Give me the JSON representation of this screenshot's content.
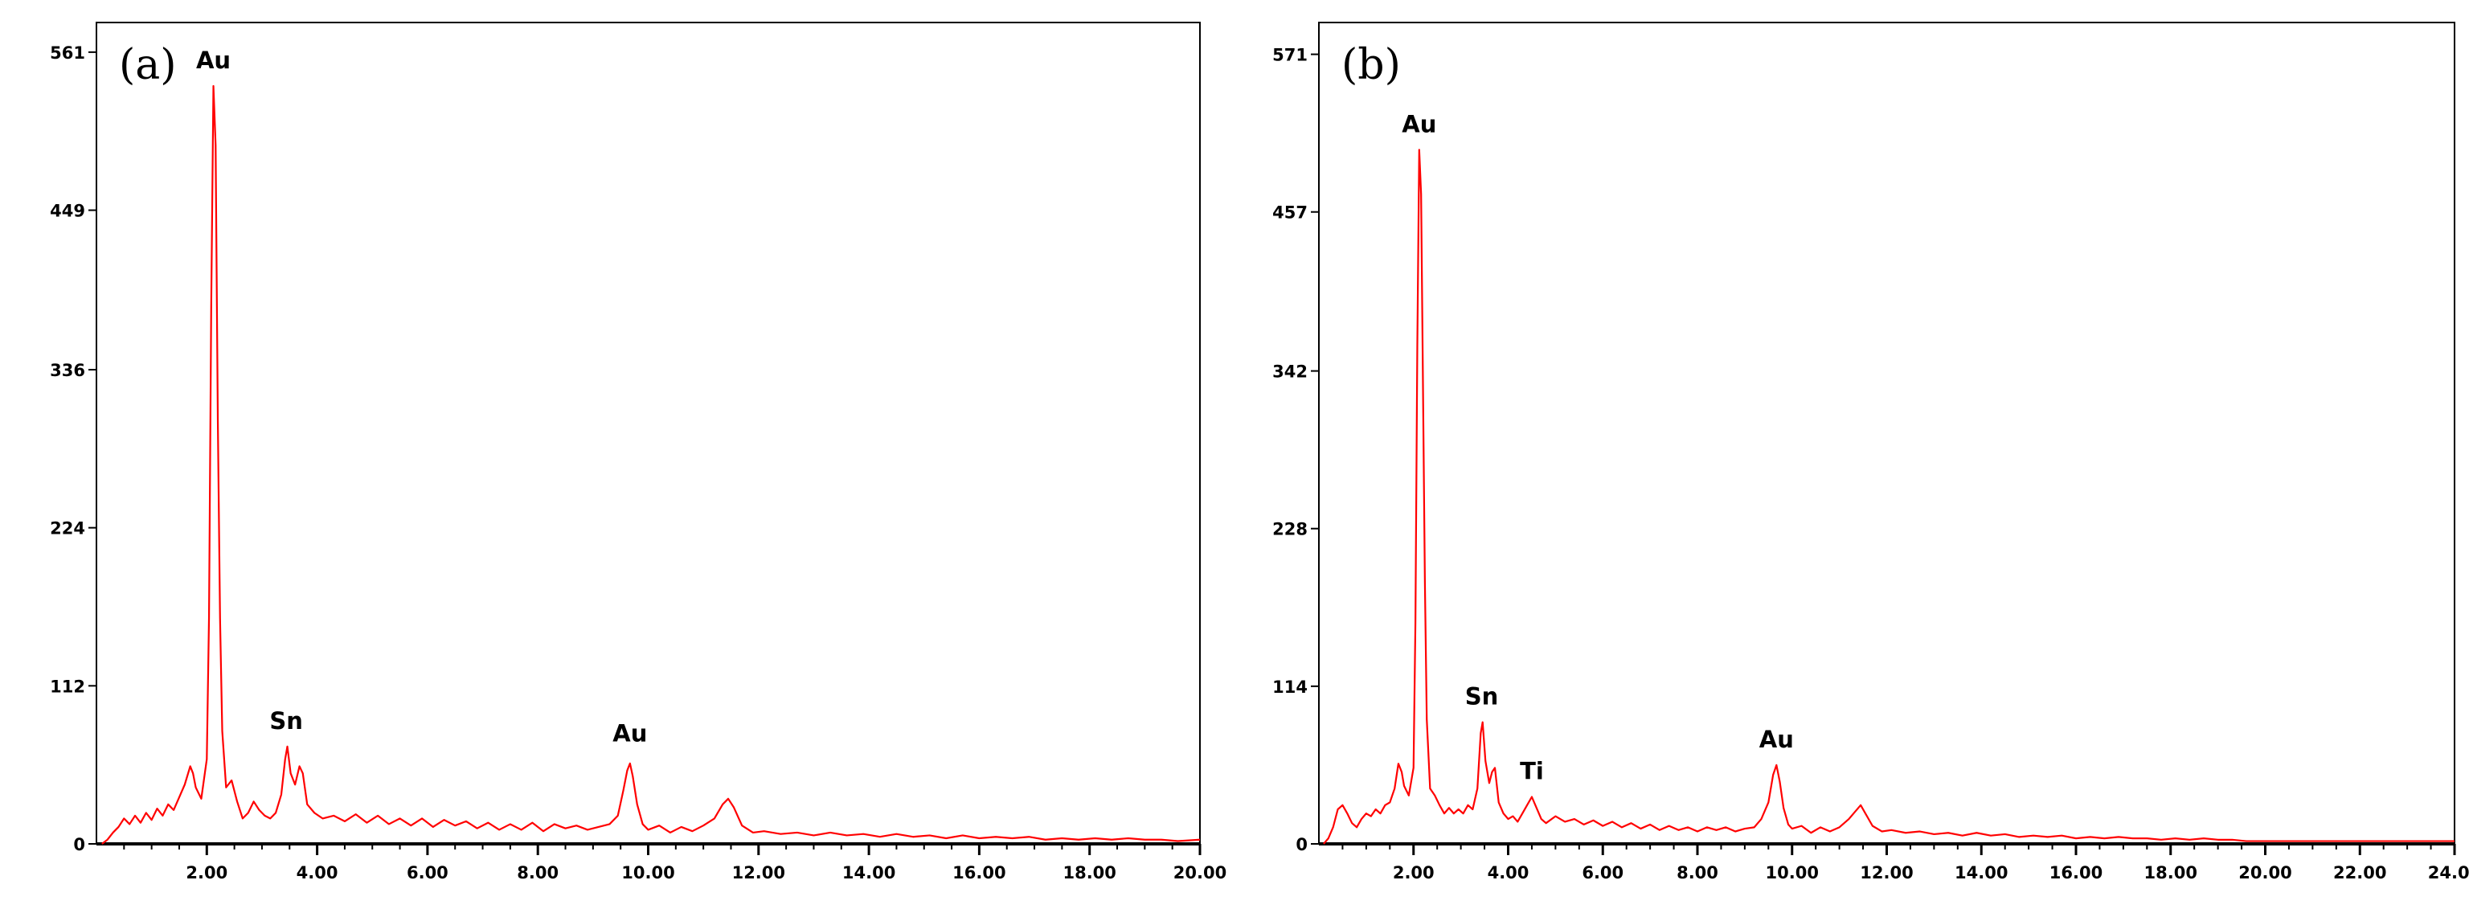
{
  "chart_data": [
    {
      "type": "line",
      "panel_label": "(a)",
      "xlabel": "",
      "ylabel": "",
      "xlim": [
        0,
        20
      ],
      "ylim": [
        0,
        582
      ],
      "x_ticks": [
        2,
        4,
        6,
        8,
        10,
        12,
        14,
        16,
        18,
        20
      ],
      "x_tick_labels": [
        "2.00",
        "4.00",
        "6.00",
        "8.00",
        "10.00",
        "12.00",
        "14.00",
        "16.00",
        "18.00",
        "20.00"
      ],
      "y_ticks": [
        0,
        112,
        224,
        336,
        449,
        561
      ],
      "y_tick_labels": [
        "0",
        "112",
        "224",
        "336",
        "449",
        "561"
      ],
      "grid": false,
      "color": "#ff0000",
      "peak_labels": [
        {
          "text": "Au",
          "x": 2.12,
          "y": 537
        },
        {
          "text": "Sn",
          "x": 3.44,
          "y": 69
        },
        {
          "text": "Au",
          "x": 9.67,
          "y": 60
        }
      ],
      "series": [
        {
          "points": [
            [
              0.1,
              0
            ],
            [
              0.2,
              3
            ],
            [
              0.3,
              8
            ],
            [
              0.4,
              12
            ],
            [
              0.5,
              18
            ],
            [
              0.6,
              14
            ],
            [
              0.7,
              20
            ],
            [
              0.8,
              15
            ],
            [
              0.9,
              22
            ],
            [
              1.0,
              17
            ],
            [
              1.1,
              25
            ],
            [
              1.2,
              20
            ],
            [
              1.3,
              28
            ],
            [
              1.4,
              24
            ],
            [
              1.5,
              33
            ],
            [
              1.6,
              42
            ],
            [
              1.7,
              55
            ],
            [
              1.75,
              50
            ],
            [
              1.8,
              40
            ],
            [
              1.9,
              32
            ],
            [
              2.0,
              60
            ],
            [
              2.04,
              160
            ],
            [
              2.08,
              380
            ],
            [
              2.12,
              537
            ],
            [
              2.16,
              495
            ],
            [
              2.2,
              300
            ],
            [
              2.24,
              160
            ],
            [
              2.28,
              80
            ],
            [
              2.35,
              40
            ],
            [
              2.45,
              45
            ],
            [
              2.55,
              30
            ],
            [
              2.65,
              18
            ],
            [
              2.75,
              22
            ],
            [
              2.85,
              30
            ],
            [
              2.95,
              24
            ],
            [
              3.05,
              20
            ],
            [
              3.15,
              18
            ],
            [
              3.25,
              22
            ],
            [
              3.35,
              35
            ],
            [
              3.42,
              60
            ],
            [
              3.46,
              69
            ],
            [
              3.52,
              50
            ],
            [
              3.6,
              42
            ],
            [
              3.68,
              55
            ],
            [
              3.74,
              50
            ],
            [
              3.82,
              28
            ],
            [
              3.95,
              22
            ],
            [
              4.1,
              18
            ],
            [
              4.3,
              20
            ],
            [
              4.5,
              16
            ],
            [
              4.7,
              21
            ],
            [
              4.9,
              15
            ],
            [
              5.1,
              20
            ],
            [
              5.3,
              14
            ],
            [
              5.5,
              18
            ],
            [
              5.7,
              13
            ],
            [
              5.9,
              18
            ],
            [
              6.1,
              12
            ],
            [
              6.3,
              17
            ],
            [
              6.5,
              13
            ],
            [
              6.7,
              16
            ],
            [
              6.9,
              11
            ],
            [
              7.1,
              15
            ],
            [
              7.3,
              10
            ],
            [
              7.5,
              14
            ],
            [
              7.7,
              10
            ],
            [
              7.9,
              15
            ],
            [
              8.1,
              9
            ],
            [
              8.3,
              14
            ],
            [
              8.5,
              11
            ],
            [
              8.7,
              13
            ],
            [
              8.9,
              10
            ],
            [
              9.1,
              12
            ],
            [
              9.3,
              14
            ],
            [
              9.45,
              20
            ],
            [
              9.55,
              38
            ],
            [
              9.62,
              52
            ],
            [
              9.67,
              57
            ],
            [
              9.72,
              48
            ],
            [
              9.8,
              28
            ],
            [
              9.9,
              14
            ],
            [
              10.0,
              10
            ],
            [
              10.2,
              13
            ],
            [
              10.4,
              8
            ],
            [
              10.6,
              12
            ],
            [
              10.8,
              9
            ],
            [
              11.0,
              13
            ],
            [
              11.2,
              18
            ],
            [
              11.35,
              28
            ],
            [
              11.45,
              32
            ],
            [
              11.55,
              26
            ],
            [
              11.7,
              13
            ],
            [
              11.9,
              8
            ],
            [
              12.1,
              9
            ],
            [
              12.4,
              7
            ],
            [
              12.7,
              8
            ],
            [
              13.0,
              6
            ],
            [
              13.3,
              8
            ],
            [
              13.6,
              6
            ],
            [
              13.9,
              7
            ],
            [
              14.2,
              5
            ],
            [
              14.5,
              7
            ],
            [
              14.8,
              5
            ],
            [
              15.1,
              6
            ],
            [
              15.4,
              4
            ],
            [
              15.7,
              6
            ],
            [
              16.0,
              4
            ],
            [
              16.3,
              5
            ],
            [
              16.6,
              4
            ],
            [
              16.9,
              5
            ],
            [
              17.2,
              3
            ],
            [
              17.5,
              4
            ],
            [
              17.8,
              3
            ],
            [
              18.1,
              4
            ],
            [
              18.4,
              3
            ],
            [
              18.7,
              4
            ],
            [
              19.0,
              3
            ],
            [
              19.3,
              3
            ],
            [
              19.6,
              2
            ],
            [
              20.0,
              3
            ]
          ]
        }
      ]
    },
    {
      "type": "line",
      "panel_label": "(b)",
      "xlabel": "",
      "ylabel": "",
      "xlim": [
        0,
        24
      ],
      "ylim": [
        0,
        594
      ],
      "x_ticks": [
        2,
        4,
        6,
        8,
        10,
        12,
        14,
        16,
        18,
        20,
        22,
        24
      ],
      "x_tick_labels": [
        "2.00",
        "4.00",
        "6.00",
        "8.00",
        "10.00",
        "12.00",
        "14.00",
        "16.00",
        "18.00",
        "20.00",
        "22.00",
        "24.00"
      ],
      "y_ticks": [
        0,
        114,
        228,
        342,
        457,
        571
      ],
      "y_tick_labels": [
        "0",
        "114",
        "228",
        "342",
        "457",
        "571"
      ],
      "grid": false,
      "color": "#ff0000",
      "peak_labels": [
        {
          "text": "Au",
          "x": 2.12,
          "y": 502
        },
        {
          "text": "Sn",
          "x": 3.44,
          "y": 88
        },
        {
          "text": "Ti",
          "x": 4.5,
          "y": 34
        },
        {
          "text": "Au",
          "x": 9.67,
          "y": 57
        }
      ],
      "series": [
        {
          "points": [
            [
              0.1,
              0
            ],
            [
              0.2,
              4
            ],
            [
              0.3,
              12
            ],
            [
              0.4,
              25
            ],
            [
              0.5,
              28
            ],
            [
              0.6,
              22
            ],
            [
              0.7,
              15
            ],
            [
              0.8,
              12
            ],
            [
              0.9,
              18
            ],
            [
              1.0,
              22
            ],
            [
              1.1,
              20
            ],
            [
              1.2,
              25
            ],
            [
              1.3,
              22
            ],
            [
              1.4,
              28
            ],
            [
              1.5,
              30
            ],
            [
              1.6,
              40
            ],
            [
              1.68,
              58
            ],
            [
              1.75,
              52
            ],
            [
              1.8,
              42
            ],
            [
              1.9,
              35
            ],
            [
              2.0,
              55
            ],
            [
              2.04,
              160
            ],
            [
              2.08,
              360
            ],
            [
              2.12,
              502
            ],
            [
              2.16,
              470
            ],
            [
              2.2,
              330
            ],
            [
              2.24,
              190
            ],
            [
              2.28,
              90
            ],
            [
              2.35,
              40
            ],
            [
              2.45,
              35
            ],
            [
              2.55,
              28
            ],
            [
              2.65,
              22
            ],
            [
              2.75,
              26
            ],
            [
              2.85,
              22
            ],
            [
              2.95,
              25
            ],
            [
              3.05,
              22
            ],
            [
              3.15,
              28
            ],
            [
              3.25,
              25
            ],
            [
              3.35,
              40
            ],
            [
              3.42,
              80
            ],
            [
              3.46,
              88
            ],
            [
              3.52,
              60
            ],
            [
              3.6,
              44
            ],
            [
              3.66,
              52
            ],
            [
              3.72,
              55
            ],
            [
              3.8,
              30
            ],
            [
              3.9,
              22
            ],
            [
              4.0,
              18
            ],
            [
              4.1,
              20
            ],
            [
              4.2,
              16
            ],
            [
              4.3,
              22
            ],
            [
              4.4,
              28
            ],
            [
              4.5,
              34
            ],
            [
              4.6,
              26
            ],
            [
              4.7,
              18
            ],
            [
              4.8,
              15
            ],
            [
              5.0,
              20
            ],
            [
              5.2,
              16
            ],
            [
              5.4,
              18
            ],
            [
              5.6,
              14
            ],
            [
              5.8,
              17
            ],
            [
              6.0,
              13
            ],
            [
              6.2,
              16
            ],
            [
              6.4,
              12
            ],
            [
              6.6,
              15
            ],
            [
              6.8,
              11
            ],
            [
              7.0,
              14
            ],
            [
              7.2,
              10
            ],
            [
              7.4,
              13
            ],
            [
              7.6,
              10
            ],
            [
              7.8,
              12
            ],
            [
              8.0,
              9
            ],
            [
              8.2,
              12
            ],
            [
              8.4,
              10
            ],
            [
              8.6,
              12
            ],
            [
              8.8,
              9
            ],
            [
              9.0,
              11
            ],
            [
              9.2,
              12
            ],
            [
              9.35,
              18
            ],
            [
              9.5,
              30
            ],
            [
              9.6,
              50
            ],
            [
              9.67,
              57
            ],
            [
              9.74,
              45
            ],
            [
              9.82,
              26
            ],
            [
              9.92,
              14
            ],
            [
              10.0,
              11
            ],
            [
              10.2,
              13
            ],
            [
              10.4,
              8
            ],
            [
              10.6,
              12
            ],
            [
              10.8,
              9
            ],
            [
              11.0,
              12
            ],
            [
              11.2,
              18
            ],
            [
              11.35,
              24
            ],
            [
              11.45,
              28
            ],
            [
              11.55,
              22
            ],
            [
              11.7,
              13
            ],
            [
              11.9,
              9
            ],
            [
              12.1,
              10
            ],
            [
              12.4,
              8
            ],
            [
              12.7,
              9
            ],
            [
              13.0,
              7
            ],
            [
              13.3,
              8
            ],
            [
              13.6,
              6
            ],
            [
              13.9,
              8
            ],
            [
              14.2,
              6
            ],
            [
              14.5,
              7
            ],
            [
              14.8,
              5
            ],
            [
              15.1,
              6
            ],
            [
              15.4,
              5
            ],
            [
              15.7,
              6
            ],
            [
              16.0,
              4
            ],
            [
              16.3,
              5
            ],
            [
              16.6,
              4
            ],
            [
              16.9,
              5
            ],
            [
              17.2,
              4
            ],
            [
              17.5,
              4
            ],
            [
              17.8,
              3
            ],
            [
              18.1,
              4
            ],
            [
              18.4,
              3
            ],
            [
              18.7,
              4
            ],
            [
              19.0,
              3
            ],
            [
              19.3,
              3
            ],
            [
              19.6,
              2
            ],
            [
              20.0,
              2
            ],
            [
              20.5,
              2
            ],
            [
              21.0,
              2
            ],
            [
              21.5,
              2
            ],
            [
              22.0,
              2
            ],
            [
              22.5,
              2
            ],
            [
              23.0,
              2
            ],
            [
              23.5,
              2
            ],
            [
              24.0,
              2
            ]
          ]
        }
      ]
    }
  ]
}
